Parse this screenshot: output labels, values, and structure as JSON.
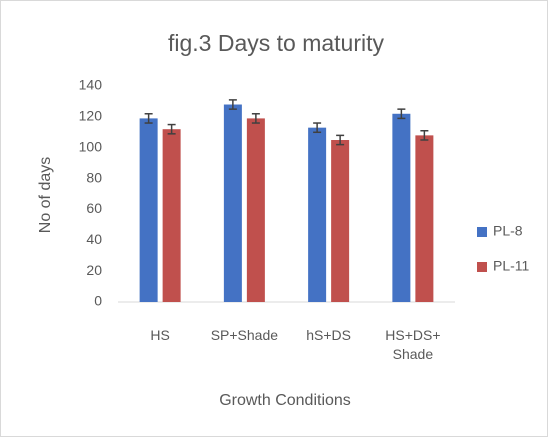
{
  "chart_data": {
    "type": "bar",
    "title": "fig.3 Days to maturity",
    "x_label": "Growth Conditions",
    "y_label": "No of days",
    "categories": [
      "HS",
      "SP+Shade",
      "hS+DS",
      "HS+DS+ Shade"
    ],
    "series": [
      {
        "name": "PL-8",
        "color": "#4472c4",
        "values": [
          119,
          128,
          113,
          122
        ],
        "errors": [
          3,
          3,
          3,
          3
        ]
      },
      {
        "name": "PL-11",
        "color": "#c0504d",
        "values": [
          112,
          119,
          105,
          108
        ],
        "errors": [
          3,
          3,
          3,
          3
        ]
      }
    ],
    "ylim": [
      0,
      140
    ],
    "yticks": [
      0,
      20,
      40,
      60,
      80,
      100,
      120,
      140
    ],
    "grid": false,
    "legend": "right"
  }
}
